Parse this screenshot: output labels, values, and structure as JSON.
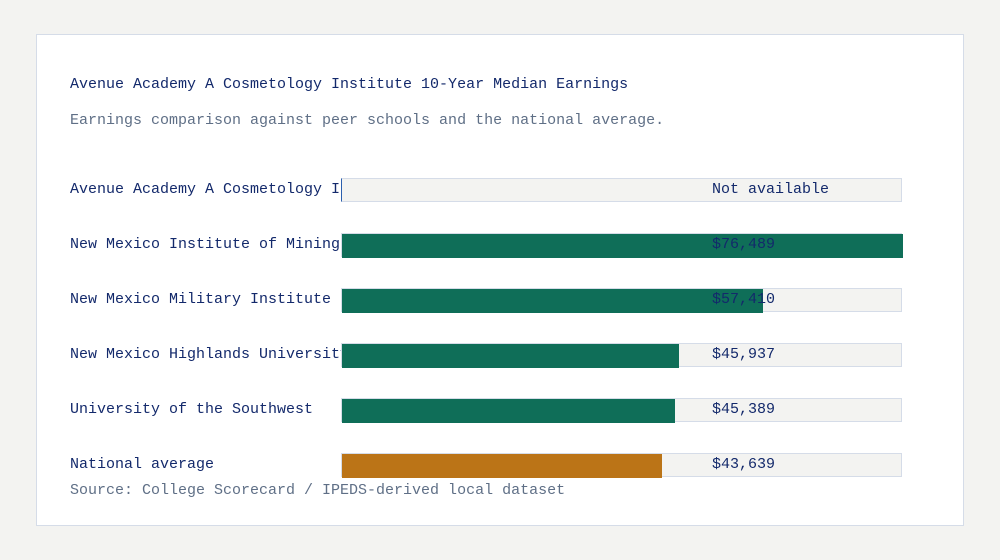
{
  "chart_data": {
    "type": "bar",
    "orientation": "horizontal",
    "title": "Avenue Academy A Cosmetology Institute 10-Year Median Earnings",
    "subtitle": "Earnings comparison against peer schools and the national average.",
    "categories": [
      "Avenue Academy A Cosmetology Institute",
      "New Mexico Institute of Mining",
      "New Mexico Military Institute",
      "New Mexico Highlands University",
      "University of the Southwest",
      "National average"
    ],
    "values": [
      null,
      76489,
      57410,
      45937,
      45389,
      43639
    ],
    "value_labels": [
      "Not available",
      "$76,489",
      "$57,410",
      "$45,937",
      "$45,389",
      "$43,639"
    ],
    "colors": [
      "#0f6e58",
      "#0f6e58",
      "#0f6e58",
      "#0f6e58",
      "#0f6e58",
      "#bb7417"
    ],
    "xlim": [
      0,
      76489
    ],
    "source": "Source: College Scorecard / IPEDS-derived local dataset"
  }
}
